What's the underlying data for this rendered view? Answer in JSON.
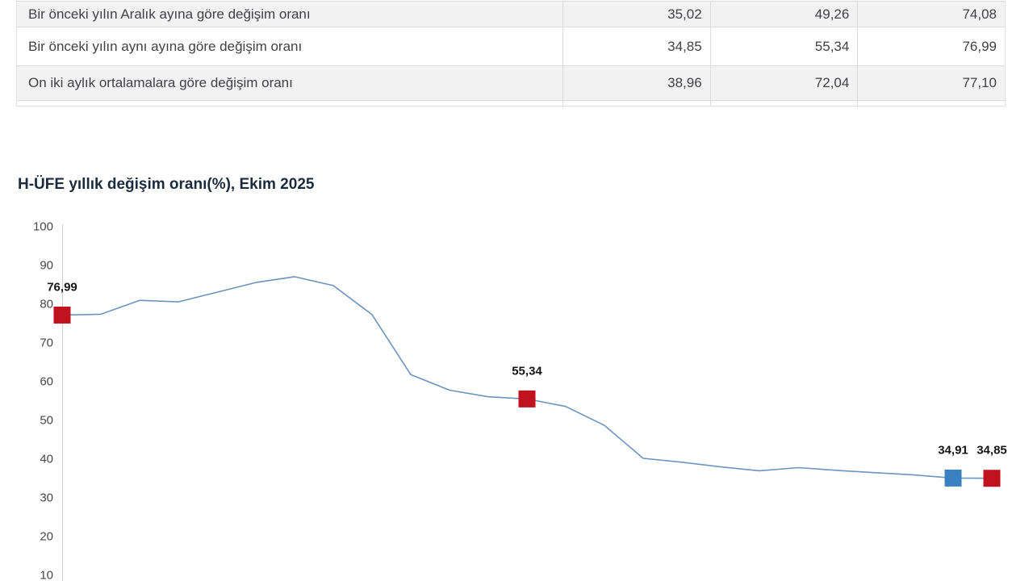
{
  "table": {
    "rows": [
      {
        "label": "Bir önceki yılın Aralık ayına göre değişim oranı",
        "values": [
          "35,02",
          "49,26",
          "74,08"
        ]
      },
      {
        "label": "Bir önceki yılın aynı ayına göre değişim oranı",
        "values": [
          "34,85",
          "55,34",
          "76,99"
        ]
      },
      {
        "label": "On iki aylık ortalamalara göre değişim oranı",
        "values": [
          "38,96",
          "72,04",
          "77,10"
        ]
      }
    ]
  },
  "chart": {
    "title": "H-ÜFE yıllık değişim oranı(%), Ekim 2025"
  },
  "chart_data": {
    "type": "line",
    "title": "H-ÜFE yıllık değişim oranı(%), Ekim 2025",
    "x_description": "monthly points, 25 consecutive months ending Ekim 2025 (no x tick labels shown)",
    "values": [
      76.99,
      77.2,
      80.8,
      80.4,
      82.9,
      85.4,
      86.9,
      84.6,
      77.1,
      61.6,
      57.6,
      55.9,
      55.34,
      53.4,
      48.5,
      40.0,
      39.0,
      37.8,
      36.8,
      37.6,
      36.9,
      36.3,
      35.7,
      34.91,
      34.85
    ],
    "ylim": [
      10,
      100
    ],
    "yticks": [
      100,
      90,
      80,
      70,
      60,
      50,
      40,
      30,
      20,
      10
    ],
    "grid": false,
    "legend": "none",
    "line_color": "#6d94bd",
    "axis_color": "#cfcfcf",
    "tick_text_color": "#474747",
    "label_text_color": "#151515",
    "annotations": [
      {
        "index": 0,
        "label": "76,99",
        "marker_color": "#c0121f"
      },
      {
        "index": 12,
        "label": "55,34",
        "marker_color": "#c0121f"
      },
      {
        "index": 23,
        "label": "34,91",
        "marker_color": "#3b80c1"
      },
      {
        "index": 24,
        "label": "34,85",
        "marker_color": "#c0121f"
      }
    ]
  }
}
